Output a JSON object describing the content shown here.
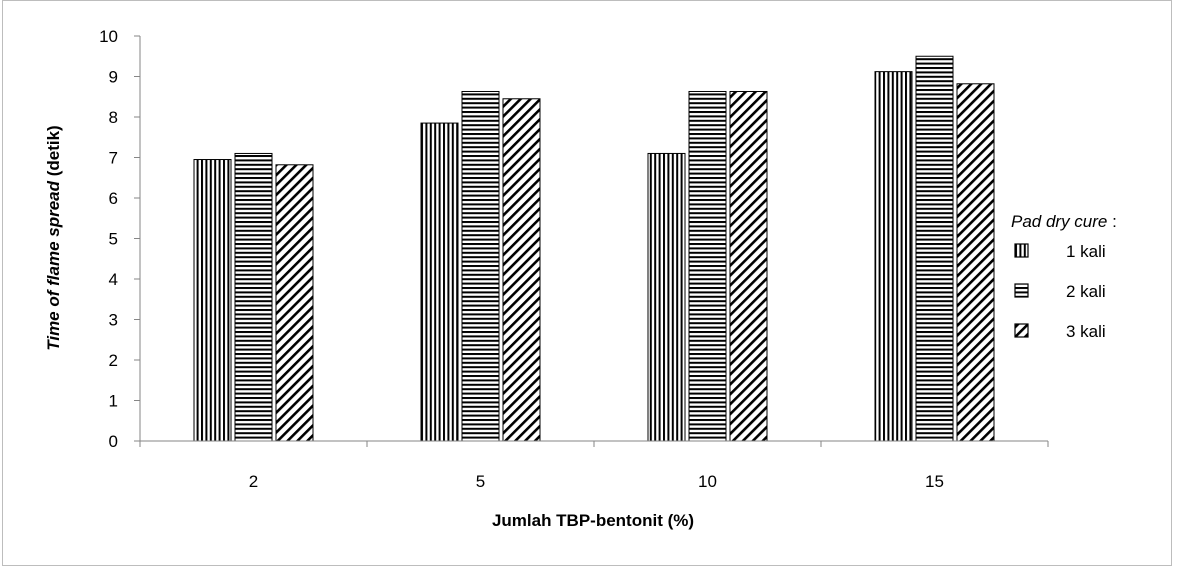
{
  "chart_data": {
    "type": "bar",
    "title": "",
    "xlabel": "Jumlah TBP-bentonit (%)",
    "ylabel_parts": [
      {
        "text": "Time of flame spread",
        "italic": true
      },
      {
        "text": " (detik)",
        "italic": false
      }
    ],
    "categories": [
      "2",
      "5",
      "10",
      "15"
    ],
    "ylim": [
      0,
      10
    ],
    "yticks": [
      "0",
      "1",
      "2",
      "3",
      "4",
      "5",
      "6",
      "7",
      "8",
      "9",
      "10"
    ],
    "grid": false,
    "legend": {
      "title_parts": [
        {
          "text": "Pad dry cure",
          "italic": true
        },
        {
          "text": " :",
          "italic": false
        }
      ],
      "placement": "right"
    },
    "series": [
      {
        "name": "1 kali",
        "pattern": "vertical-lines",
        "values": [
          6.95,
          7.85,
          7.1,
          9.12
        ]
      },
      {
        "name": "2 kali",
        "pattern": "horizontal-lines",
        "values": [
          7.1,
          8.63,
          8.63,
          9.5
        ]
      },
      {
        "name": "3 kali",
        "pattern": "diagonal-lines",
        "values": [
          6.82,
          8.45,
          8.63,
          8.82
        ]
      }
    ]
  }
}
